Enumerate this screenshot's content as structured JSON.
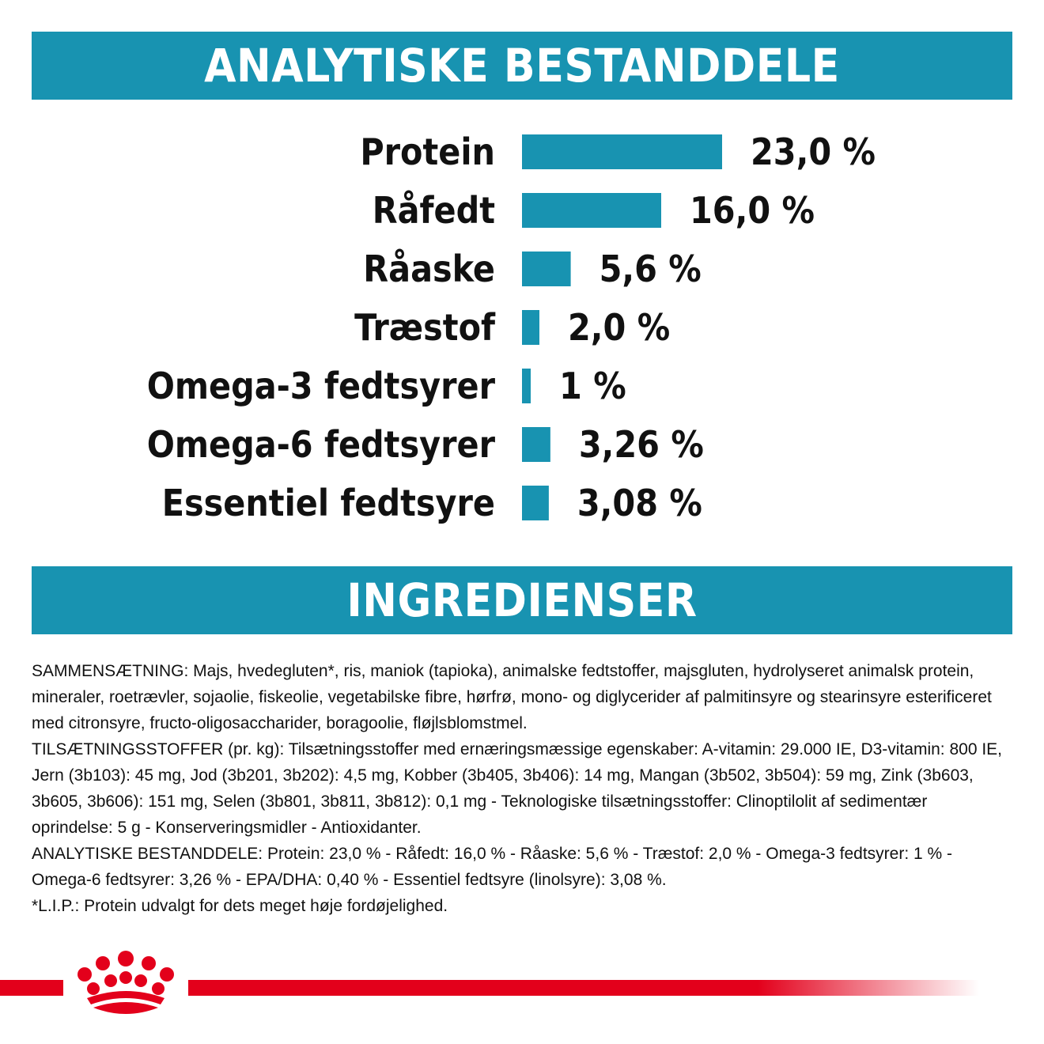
{
  "sections": {
    "analysis_title": "ANALYTISKE BESTANDDELE",
    "ingredients_title": "INGREDIENSER"
  },
  "chart_data": {
    "type": "bar",
    "orientation": "horizontal",
    "title": "ANALYTISKE BESTANDDELE",
    "categories": [
      "Protein",
      "Råfedt",
      "Råaske",
      "Træstof",
      "Omega-3 fedtsyrer",
      "Omega-6 fedtsyrer",
      "Essentiel fedtsyre"
    ],
    "values": [
      23.0,
      16.0,
      5.6,
      2.0,
      1,
      3.26,
      3.08
    ],
    "value_labels": [
      "23,0 %",
      "16,0 %",
      "5,6 %",
      "2,0 %",
      "1 %",
      "3,26 %",
      "3,08 %"
    ],
    "unit": "%",
    "bar_color": "#1893b1",
    "grid": false,
    "legend": "none"
  },
  "ingredients": {
    "paragraphs": [
      "SAMMENSÆTNING: Majs, hvedegluten*, ris, maniok (tapioka), animalske fedtstoffer, majsgluten, hydrolyseret animalsk protein, mineraler, roetrævler, sojaolie, fiskeolie, vegetabilske fibre, hørfrø, mono- og diglycerider af palmitinsyre og stearinsyre esterificeret med citronsyre, fructo-oligosaccharider, boragoolie, fløjlsblomstmel.",
      "TILSÆTNINGSSTOFFER (pr. kg): Tilsætningsstoffer med ernæringsmæssige egenskaber: A-vitamin: 29.000 IE, D3-vitamin: 800 IE, Jern (3b103): 45 mg, Jod (3b201, 3b202): 4,5 mg, Kobber (3b405, 3b406): 14 mg, Mangan (3b502, 3b504): 59 mg, Zink (3b603, 3b605, 3b606): 151 mg, Selen (3b801, 3b811, 3b812): 0,1 mg - Teknologiske tilsætningsstoffer: Clinoptilolit af sedimentær oprindelse: 5 g - Konserveringsmidler - Antioxidanter.",
      "ANALYTISKE BESTANDDELE: Protein: 23,0 % - Råfedt: 16,0 % - Råaske: 5,6 % - Træstof: 2,0 % - Omega-3 fedtsyrer: 1 % - Omega-6 fedtsyrer: 3,26 % - EPA/DHA: 0,40 % - Essentiel fedtsyre (linolsyre): 3,08 %.",
      "*L.I.P.: Protein udvalgt for dets meget høje fordøjelighed."
    ]
  },
  "footer": {
    "logo_icon": "crown-icon",
    "line_color": "#e3001b"
  }
}
